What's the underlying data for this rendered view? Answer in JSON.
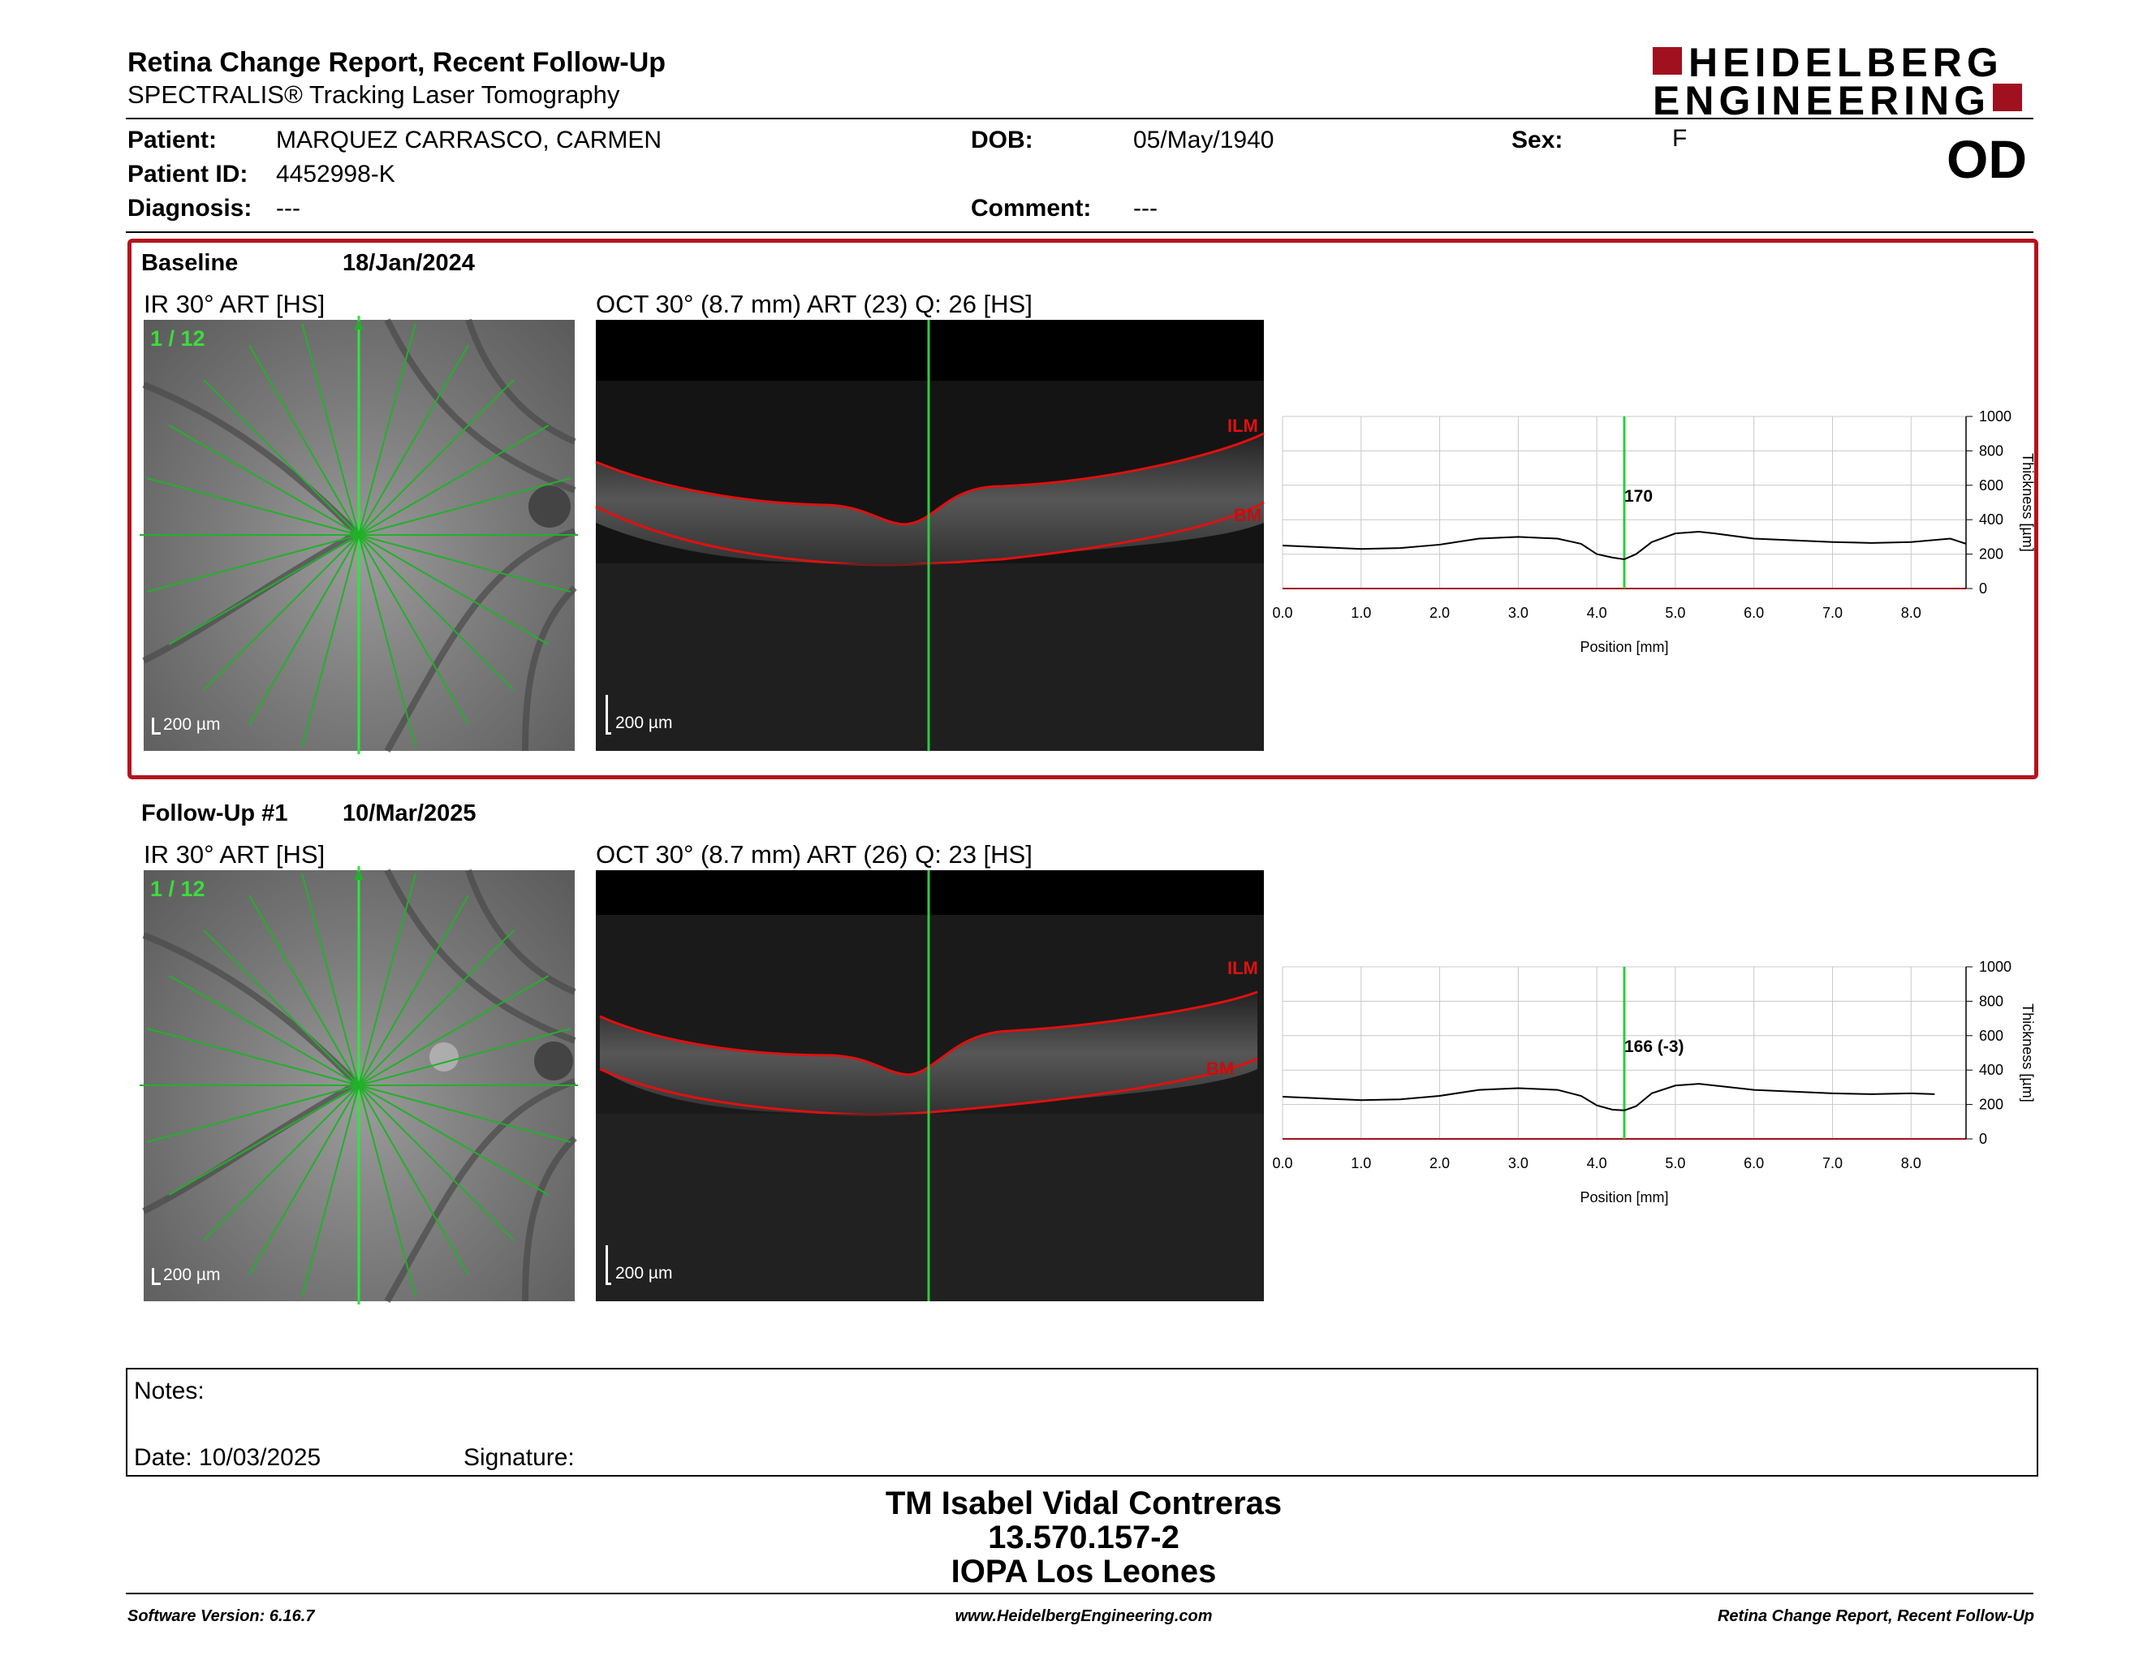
{
  "header": {
    "title": "Retina Change Report, Recent Follow-Up",
    "subtitle": "SPECTRALIS® Tracking Laser Tomography",
    "logo_line1": "HEIDELBERG",
    "logo_line2": "ENGINEERING",
    "eye": "OD"
  },
  "patient": {
    "patient_label": "Patient:",
    "patient_value": "MARQUEZ CARRASCO, CARMEN",
    "id_label": "Patient ID:",
    "id_value": "4452998-K",
    "diag_label": "Diagnosis:",
    "diag_value": "---",
    "dob_label": "DOB:",
    "dob_value": "05/May/1940",
    "comment_label": "Comment:",
    "comment_value": "---",
    "sex_label": "Sex:",
    "sex_value": "F"
  },
  "baseline": {
    "label": "Baseline",
    "date": "18/Jan/2024",
    "ir_title": "IR 30° ART [HS]",
    "oct_title": "OCT 30° (8.7 mm) ART (23) Q: 26 [HS]",
    "scan_index": "1 / 12",
    "scale": "200 µm",
    "ilm": "ILM",
    "bm": "BM",
    "marker_value": "170"
  },
  "followup": {
    "label": "Follow-Up #1",
    "date": "10/Mar/2025",
    "ir_title": "IR 30° ART [HS]",
    "oct_title": "OCT 30° (8.7 mm) ART (26) Q: 23 [HS]",
    "scan_index": "1 / 12",
    "scale": "200 µm",
    "ilm": "ILM",
    "bm": "BM",
    "marker_value": "166 (-3)"
  },
  "chart_data": [
    {
      "type": "line",
      "name": "Baseline",
      "xlabel": "Position [mm]",
      "ylabel": "Thickness [µm]",
      "xlim": [
        0,
        8.7
      ],
      "ylim": [
        0,
        1000
      ],
      "x_ticks": [
        "0.0",
        "1.0",
        "2.0",
        "3.0",
        "4.0",
        "5.0",
        "6.0",
        "7.0",
        "8.0"
      ],
      "y_ticks": [
        "0",
        "200",
        "400",
        "600",
        "800",
        "1000"
      ],
      "grid": true,
      "marker_x": 4.35,
      "x": [
        0.0,
        0.5,
        1.0,
        1.5,
        2.0,
        2.5,
        3.0,
        3.5,
        3.8,
        4.0,
        4.2,
        4.35,
        4.5,
        4.7,
        5.0,
        5.3,
        5.5,
        6.0,
        6.5,
        7.0,
        7.5,
        8.0,
        8.5,
        8.7
      ],
      "y": [
        250,
        240,
        230,
        235,
        255,
        290,
        300,
        290,
        260,
        200,
        180,
        170,
        200,
        270,
        320,
        330,
        320,
        290,
        280,
        270,
        265,
        270,
        290,
        260
      ]
    },
    {
      "type": "line",
      "name": "Follow-Up #1",
      "xlabel": "Position [mm]",
      "ylabel": "Thickness [µm]",
      "xlim": [
        0,
        8.7
      ],
      "ylim": [
        0,
        1000
      ],
      "x_ticks": [
        "0.0",
        "1.0",
        "2.0",
        "3.0",
        "4.0",
        "5.0",
        "6.0",
        "7.0",
        "8.0"
      ],
      "y_ticks": [
        "0",
        "200",
        "400",
        "600",
        "800",
        "1000"
      ],
      "grid": true,
      "marker_x": 4.35,
      "x": [
        0.0,
        0.5,
        1.0,
        1.5,
        2.0,
        2.5,
        3.0,
        3.5,
        3.8,
        4.0,
        4.2,
        4.35,
        4.5,
        4.7,
        5.0,
        5.3,
        5.5,
        6.0,
        6.5,
        7.0,
        7.5,
        8.0,
        8.3
      ],
      "y": [
        245,
        235,
        225,
        230,
        250,
        285,
        295,
        285,
        250,
        195,
        170,
        166,
        190,
        265,
        310,
        320,
        310,
        285,
        275,
        265,
        260,
        265,
        260
      ]
    }
  ],
  "notes": {
    "notes_label": "Notes:",
    "date_label": "Date: 10/03/2025",
    "signature_label": "Signature:"
  },
  "signature_block": {
    "name": "TM Isabel Vidal Contreras",
    "id": "13.570.157-2",
    "place": "IOPA Los Leones"
  },
  "footer": {
    "left": "Software Version: 6.16.7",
    "center": "www.HeidelbergEngineering.com",
    "right": "Retina Change Report, Recent Follow-Up"
  },
  "colors": {
    "accent": "#a0101e",
    "scan_green": "#2ecc40",
    "layer_red": "#e01010"
  }
}
